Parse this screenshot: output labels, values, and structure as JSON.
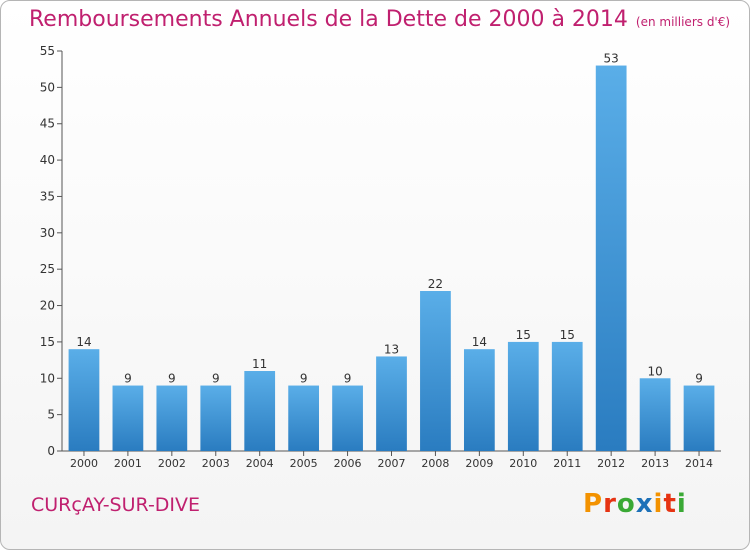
{
  "header": {
    "title": "Remboursements Annuels de la Dette de 2000 à 2014",
    "unit": "(en milliers d'€)"
  },
  "footer": {
    "town": "CURçAY-SUR-DIVE",
    "logo_letters": [
      "P",
      "r",
      "o",
      "x",
      "i",
      "t",
      "i"
    ],
    "logo_colors": [
      "#f39200",
      "#e63312",
      "#3aa935",
      "#1d71b8",
      "#f39200",
      "#e63312",
      "#3aa935"
    ]
  },
  "chart_data": {
    "type": "bar",
    "categories": [
      "2000",
      "2001",
      "2002",
      "2003",
      "2004",
      "2005",
      "2006",
      "2007",
      "2008",
      "2009",
      "2010",
      "2011",
      "2012",
      "2013",
      "2014"
    ],
    "values": [
      14,
      9,
      9,
      9,
      11,
      9,
      9,
      13,
      22,
      14,
      15,
      15,
      53,
      10,
      9
    ],
    "title": "Remboursements Annuels de la Dette de 2000 à 2014",
    "xlabel": "",
    "ylabel": "",
    "ylim": [
      0,
      55
    ],
    "yticks": [
      0,
      5,
      10,
      15,
      20,
      25,
      30,
      35,
      40,
      45,
      50,
      55
    ],
    "grid": false,
    "bar_color_top": "#5aaee8",
    "bar_color_bottom": "#2a7cc0"
  }
}
